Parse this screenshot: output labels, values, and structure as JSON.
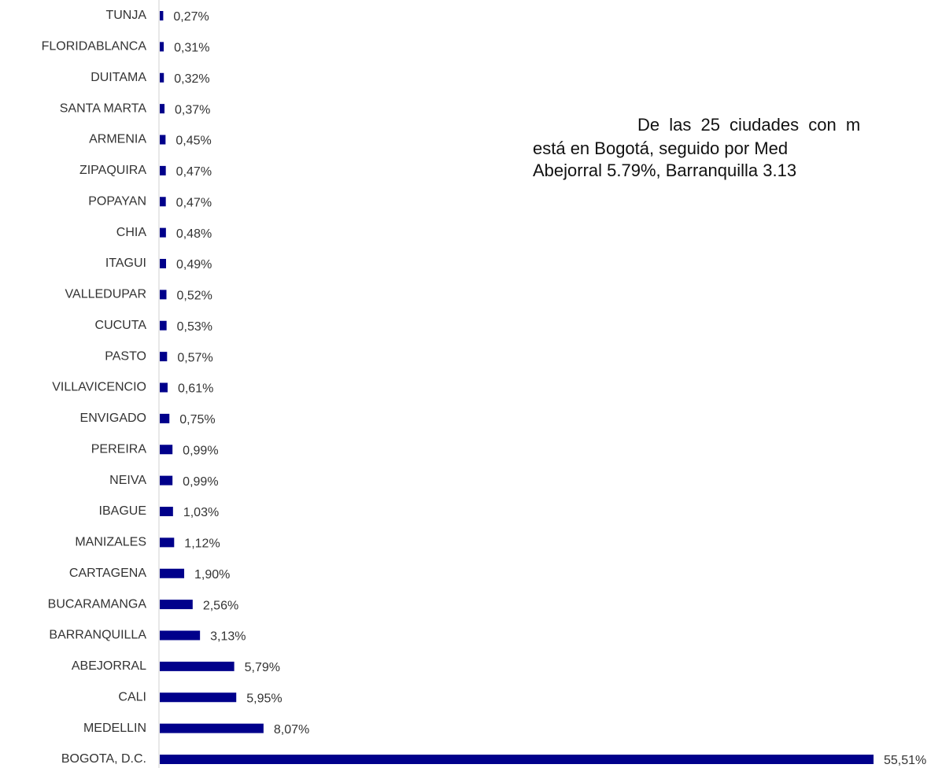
{
  "chart_data": {
    "type": "barh",
    "categories": [
      "TUNJA",
      "FLORIDABLANCA",
      "DUITAMA",
      "SANTA MARTA",
      "ARMENIA",
      "ZIPAQUIRA",
      "POPAYAN",
      "CHIA",
      "ITAGUI",
      "VALLEDUPAR",
      "CUCUTA",
      "PASTO",
      "VILLAVICENCIO",
      "ENVIGADO",
      "PEREIRA",
      "NEIVA",
      "IBAGUE",
      "MANIZALES",
      "CARTAGENA",
      "BUCARAMANGA",
      "BARRANQUILLA",
      "ABEJORRAL",
      "CALI",
      "MEDELLIN",
      "BOGOTA, D.C."
    ],
    "values": [
      0.27,
      0.31,
      0.32,
      0.37,
      0.45,
      0.47,
      0.47,
      0.48,
      0.49,
      0.52,
      0.53,
      0.57,
      0.61,
      0.75,
      0.99,
      0.99,
      1.03,
      1.12,
      1.9,
      2.56,
      3.13,
      5.79,
      5.95,
      8.07,
      55.51
    ],
    "value_labels": [
      "0,27%",
      "0,31%",
      "0,32%",
      "0,37%",
      "0,45%",
      "0,47%",
      "0,47%",
      "0,48%",
      "0,49%",
      "0,52%",
      "0,53%",
      "0,57%",
      "0,61%",
      "0,75%",
      "0,99%",
      "0,99%",
      "1,03%",
      "1,12%",
      "1,90%",
      "2,56%",
      "3,13%",
      "5,79%",
      "5,95%",
      "8,07%",
      "55,51%"
    ],
    "color": "#00008b",
    "annotation_lines": [
      "De las 25 ciudades con m",
      "está en Bogotá, seguido por Med",
      "Abejorral 5.79%, Barranquilla 3.13"
    ]
  }
}
